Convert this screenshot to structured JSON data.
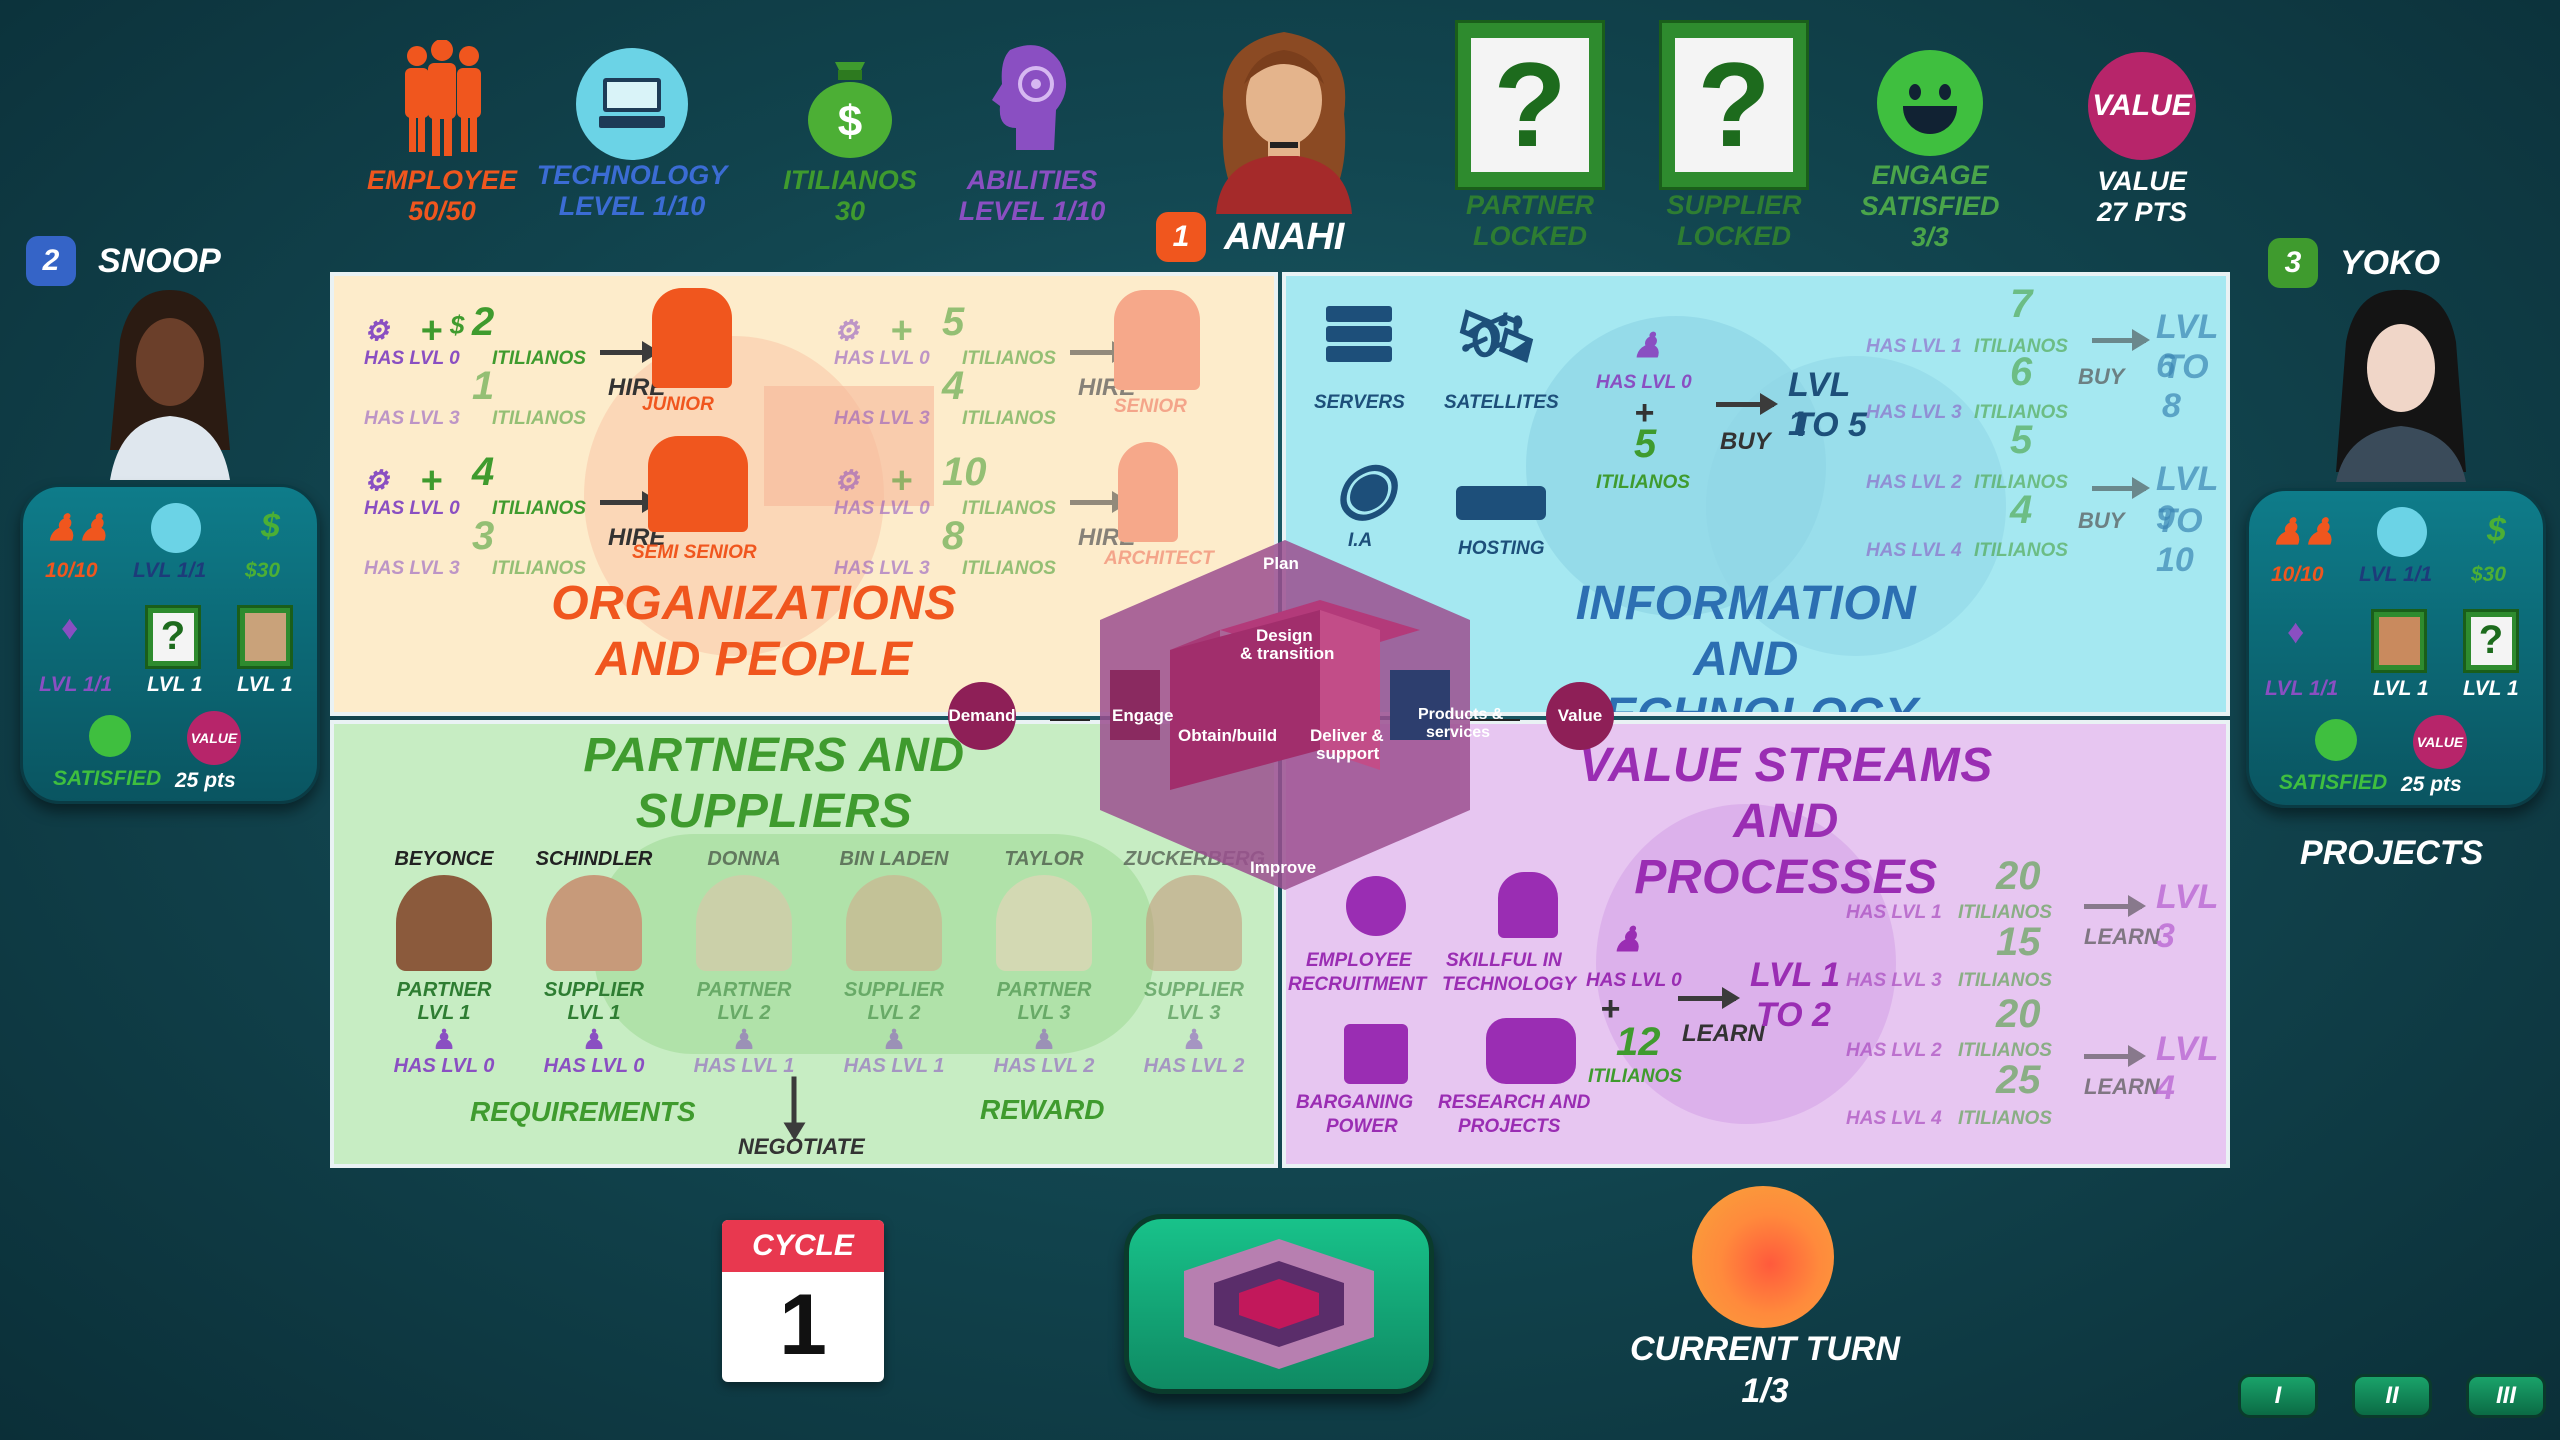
{
  "top": {
    "employee": {
      "label": "EMPLOYEE",
      "value": "50/50"
    },
    "technology": {
      "label": "TECHNOLOGY",
      "value": "LEVEL  1/10"
    },
    "itilianos": {
      "label": "ITILIANOS",
      "value": "30"
    },
    "abilities": {
      "label": "ABILITIES",
      "value": "LEVEL  1/10"
    },
    "player": {
      "num": "1",
      "name": "ANAHI"
    },
    "partner": {
      "label": "PARTNER",
      "value": "LOCKED"
    },
    "supplier": {
      "label": "SUPPLIER",
      "value": "LOCKED"
    },
    "engage": {
      "label": "ENGAGE",
      "value": "SATISFIED",
      "count": "3/3"
    },
    "value": {
      "badge": "VALUE",
      "label": "VALUE",
      "pts": "27 PTS"
    }
  },
  "left_player": {
    "num": "2",
    "name": "SNOOP",
    "employees": "10/10",
    "tech": "LVL 1/1",
    "money": "$30",
    "ability": "LVL 1/1",
    "partner": "LVL 1",
    "supplier": "LVL 1",
    "satisfied": "SATISFIED",
    "value_badge": "VALUE",
    "pts": "25 pts"
  },
  "right_player": {
    "num": "3",
    "name": "YOKO",
    "employees": "10/10",
    "tech": "LVL 1/1",
    "money": "$30",
    "ability": "LVL 1/1",
    "partner": "LVL 1",
    "supplier": "LVL 1",
    "satisfied": "SATISFIED",
    "value_badge": "VALUE",
    "pts": "25 pts",
    "projects": "PROJECTS"
  },
  "org": {
    "title1": "ORGANIZATIONS",
    "title2": "AND PEOPLE",
    "rows": [
      {
        "lvl_a": "HAS LVL 0",
        "n_a": "2",
        "lvl_b": "HAS LVL 3",
        "n_b": "1",
        "hire": "HIRE",
        "role": "JUNIOR"
      },
      {
        "lvl_a": "HAS LVL 0",
        "n_a": "5",
        "lvl_b": "HAS LVL 3",
        "n_b": "4",
        "hire": "HIRE",
        "role": "SENIOR"
      },
      {
        "lvl_a": "HAS LVL 0",
        "n_a": "4",
        "lvl_b": "HAS LVL 3",
        "n_b": "3",
        "hire": "HIRE",
        "role": "SEMI SENIOR"
      },
      {
        "lvl_a": "HAS LVL 0",
        "n_a": "10",
        "lvl_b": "HAS LVL 3",
        "n_b": "8",
        "hire": "HIRE",
        "role": "ARCHITECT"
      }
    ],
    "currency": "ITILIANOS"
  },
  "it": {
    "title1": "INFORMATION AND",
    "title2": "TECHNOLOGY",
    "servers": "SERVERS",
    "satellites": "SATELLITES",
    "ia": "I.A",
    "hosting": "HOSTING",
    "center": {
      "has": "HAS LVL 0",
      "n": "5",
      "cur": "ITILIANOS",
      "buy": "BUY",
      "lvl1": "LVL 1",
      "lvl2": "TO 5"
    },
    "r": [
      {
        "has": "HAS LVL 1",
        "n": "7"
      },
      {
        "has": "HAS LVL 3",
        "n": "6"
      },
      {
        "has": "HAS LVL 2",
        "n": "5"
      },
      {
        "has": "HAS LVL 4",
        "n": "4"
      }
    ],
    "buy": "BUY",
    "lvlA1": "LVL 6",
    "lvlA2": "TO 8",
    "lvlB1": "LVL 9",
    "lvlB2": "TO 10",
    "currency": "ITILIANOS"
  },
  "ps": {
    "title1": "PARTNERS AND",
    "title2": "SUPPLIERS",
    "people": [
      {
        "name": "BEYONCE",
        "role": "PARTNER",
        "lvl": "LVL 1",
        "has": "HAS LVL 0"
      },
      {
        "name": "SCHINDLER",
        "role": "SUPPLIER",
        "lvl": "LVL 1",
        "has": "HAS LVL 0"
      },
      {
        "name": "DONNA",
        "role": "PARTNER",
        "lvl": "LVL 2",
        "has": "HAS LVL 1"
      },
      {
        "name": "BIN LADEN",
        "role": "SUPPLIER",
        "lvl": "LVL 2",
        "has": "HAS LVL 1"
      },
      {
        "name": "TAYLOR",
        "role": "PARTNER",
        "lvl": "LVL 3",
        "has": "HAS LVL 2"
      },
      {
        "name": "ZUCKERBERG",
        "role": "SUPPLIER",
        "lvl": "LVL 3",
        "has": "HAS LVL 2"
      }
    ],
    "requirements": "REQUIREMENTS",
    "negotiate": "NEGOTIATE",
    "reward": "REWARD"
  },
  "vs": {
    "title1": "VALUE STREAMS",
    "title2": "AND PROCESSES",
    "recruit1": "EMPLOYEE",
    "recruit2": "RECRUITMENT",
    "skill1": "SKILLFUL IN",
    "skill2": "TECHNOLOGY",
    "barg1": "BARGANING",
    "barg2": "POWER",
    "research1": "RESEARCH AND",
    "research2": "PROJECTS",
    "center": {
      "has": "HAS LVL 0",
      "n": "12",
      "cur": "ITILIANOS",
      "learn": "LEARN",
      "lvl1": "LVL 1",
      "lvl2": "TO 2"
    },
    "r": [
      {
        "has": "HAS LVL 1",
        "n": "20"
      },
      {
        "has": "HAS LVL 3",
        "n": "15"
      },
      {
        "has": "HAS LVL 2",
        "n": "20"
      },
      {
        "has": "HAS LVL 4",
        "n": "25"
      }
    ],
    "learn": "LEARN",
    "lvlA": "LVL 3",
    "lvlB": "LVL 4",
    "currency": "ITILIANOS"
  },
  "svc": {
    "plan": "Plan",
    "design": "Design",
    "transition": "& transition",
    "engage": "Engage",
    "obtain": "Obtain/build",
    "deliver": "Deliver &",
    "support": "support",
    "products": "Products &",
    "services": "services",
    "improve": "Improve",
    "demand": "Demand",
    "value": "Value"
  },
  "bottom": {
    "cycle": "CYCLE",
    "cycle_num": "1",
    "turn_label": "CURRENT TURN",
    "turn_value": "1/3",
    "btn1": "I",
    "btn2": "II",
    "btn3": "III"
  },
  "colors": {
    "orange": "#f0561e",
    "blue": "#3564c7",
    "green": "#3f9b2e",
    "purple": "#8a4fc2",
    "magenta": "#b7256a",
    "brown": "#d9822b"
  }
}
